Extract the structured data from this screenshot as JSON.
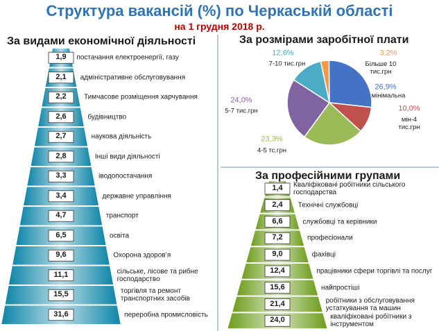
{
  "header": {
    "title": "Структура вакансій (%) по Черкаській області",
    "subtitle": "на 1 грудня 2018 р."
  },
  "chart_data": [
    {
      "type": "pyramid",
      "title": "За видами економічної діяльності",
      "color": "#0f86a8",
      "categories": [
        "постачання електроенергії, газу",
        "адміністративне обслуговування",
        "Тимчасове розміщення харчування",
        "будівництво",
        "наукова діяльність",
        "Інші види діяльності",
        "іводопостачання",
        "державне управління",
        "транспорт",
        "освіта",
        "Охорона здоров’я",
        "сільське, лісове та рибне господарство",
        "торгівля та ремонт транспортних засобів",
        "переробна промисловість"
      ],
      "values": [
        1.9,
        2.1,
        2.2,
        2.6,
        2.7,
        2.8,
        3.3,
        3.4,
        4.7,
        6.5,
        9.6,
        11.1,
        15.5,
        31.6
      ],
      "value_labels": [
        "1,9",
        "2,1",
        "2,2",
        "2,6",
        "2,7",
        "2,8",
        "3,3",
        "3,4",
        "4,7",
        "6,5",
        "9,6",
        "11,1",
        "15,5",
        "31,6"
      ]
    },
    {
      "type": "pie",
      "title": "За розмірами заробітної плати",
      "categories": [
        "Більше 10 тис.грн",
        "мінімальна",
        "мін-4 тис.грн",
        "4-5 тс.грн",
        "5-7 тис.грн",
        "7-10 тис.грн"
      ],
      "values": [
        3.2,
        26.9,
        10.0,
        23.3,
        24.0,
        12.6
      ],
      "value_labels": [
        "3,2%",
        "26,9%",
        "10,0%",
        "23,3%",
        "24,0%",
        "12,6%"
      ],
      "colors": [
        "#f79646",
        "#4472c4",
        "#c0504d",
        "#9bbb59",
        "#8064a2",
        "#4bacc6"
      ]
    },
    {
      "type": "pyramid",
      "title": "За професійними групами",
      "color": "#6e9e1e",
      "categories": [
        "Кваліфіковані робітники сільського господарства",
        "Технічні службовці",
        "службовці та керівники",
        "професіонали",
        "фахівці",
        "працівники сфери торгівлі та послуг",
        "найпростіші",
        "робітники з обслуговування устаткування та машин",
        "кваліфіковані робітники з інструментом"
      ],
      "values": [
        1.4,
        2.4,
        6.6,
        7.2,
        9.0,
        12.4,
        15.6,
        21.4,
        24.0
      ],
      "value_labels": [
        "1,4",
        "2,4",
        "6,6",
        "7,2",
        "9,0",
        "12,4",
        "15,6",
        "21,4",
        "24,0"
      ]
    }
  ]
}
